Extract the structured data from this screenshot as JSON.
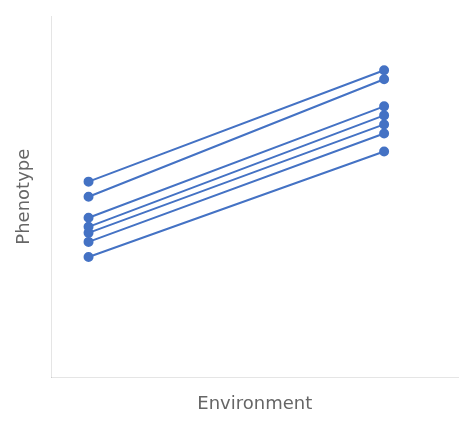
{
  "chart_data": {
    "type": "line",
    "xlabel": "Environment",
    "ylabel": "Phenotype",
    "x": [
      1,
      9
    ],
    "series": [
      {
        "values": [
          6.5,
          10.2
        ]
      },
      {
        "values": [
          6.0,
          9.9
        ]
      },
      {
        "values": [
          5.3,
          9.0
        ]
      },
      {
        "values": [
          5.0,
          8.7
        ]
      },
      {
        "values": [
          4.8,
          8.4
        ]
      },
      {
        "values": [
          4.5,
          8.1
        ]
      },
      {
        "values": [
          4.0,
          7.5
        ]
      }
    ],
    "color": "#4472C4",
    "marker": "circle",
    "xlim": [
      0,
      11
    ],
    "ylim": [
      0,
      12
    ],
    "tick_labels": false,
    "grid": false
  }
}
